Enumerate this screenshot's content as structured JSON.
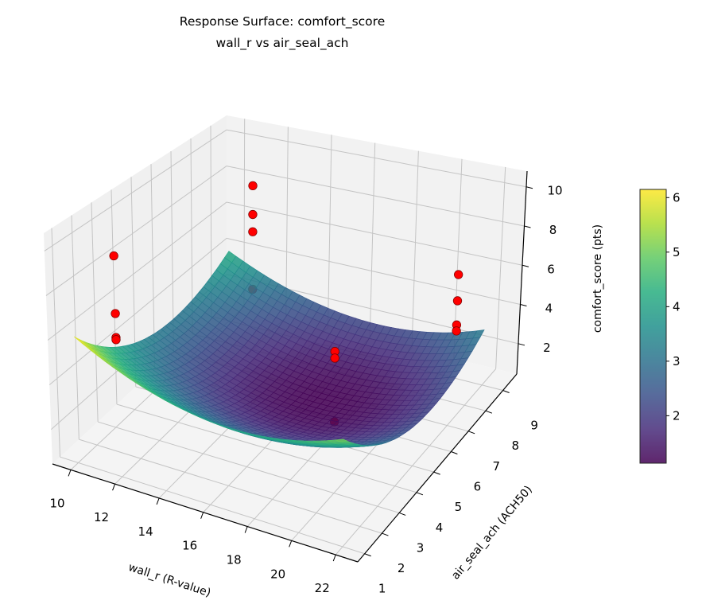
{
  "chart_data": {
    "type": "surface3d",
    "title": [
      "Response Surface: comfort_score",
      "wall_r vs air_seal_ach"
    ],
    "xlabel": "wall_r (R-value)",
    "ylabel": "air_seal_ach (ACH50)",
    "zlabel": "comfort_score (pts)",
    "xlim": [
      9.17,
      23.0
    ],
    "ylim": [
      0.6,
      9.8
    ],
    "zlim": [
      0.45,
      10.8
    ],
    "xticks": [
      10,
      12,
      14,
      16,
      18,
      20,
      22
    ],
    "yticks": [
      1,
      2,
      3,
      4,
      5,
      6,
      7,
      8,
      9
    ],
    "zticks": [
      2,
      4,
      6,
      8,
      10
    ],
    "grid": true,
    "colormap": "viridis",
    "surface": {
      "x_range": [
        10,
        22
      ],
      "y_range": [
        1,
        9
      ],
      "model": "z = 1.13 + 0.041*(x-17)^2 + 0.12*(y-6)^2",
      "coefficients": {
        "intercept": 1.13,
        "x_center": 17,
        "x_quad": 0.041,
        "y_center": 6,
        "y_quad": 0.12
      },
      "zmin": 1.13,
      "zmax": 6.15
    },
    "points": [
      {
        "x": 11,
        "y": 2,
        "z": 9.45,
        "behind_surface": false
      },
      {
        "x": 11,
        "y": 2,
        "z": 6.8,
        "behind_surface": false
      },
      {
        "x": 11,
        "y": 2,
        "z": 5.7,
        "behind_surface": false
      },
      {
        "x": 11,
        "y": 2,
        "z": 5.6,
        "behind_surface": false
      },
      {
        "x": 12,
        "y": 8,
        "z": 9.0,
        "behind_surface": false
      },
      {
        "x": 12,
        "y": 8,
        "z": 7.5,
        "behind_surface": false
      },
      {
        "x": 12,
        "y": 8,
        "z": 6.6,
        "behind_surface": false
      },
      {
        "x": 12,
        "y": 8,
        "z": 3.6,
        "behind_surface": true
      },
      {
        "x": 21.5,
        "y": 8,
        "z": 6.8,
        "behind_surface": false
      },
      {
        "x": 21.5,
        "y": 8,
        "z": 5.5,
        "behind_surface": false
      },
      {
        "x": 21.5,
        "y": 8,
        "z": 4.3,
        "behind_surface": false
      },
      {
        "x": 21.5,
        "y": 8,
        "z": 4.0,
        "behind_surface": false
      },
      {
        "x": 20,
        "y": 3,
        "z": 6.9,
        "behind_surface": false
      },
      {
        "x": 20,
        "y": 3,
        "z": 6.6,
        "behind_surface": false
      },
      {
        "x": 20,
        "y": 3,
        "z": 3.7,
        "behind_surface": true
      }
    ],
    "point_color": "#ff0000",
    "colorbar": {
      "range": [
        1.13,
        6.15
      ],
      "ticks": [
        2,
        3,
        4,
        5,
        6
      ]
    }
  }
}
